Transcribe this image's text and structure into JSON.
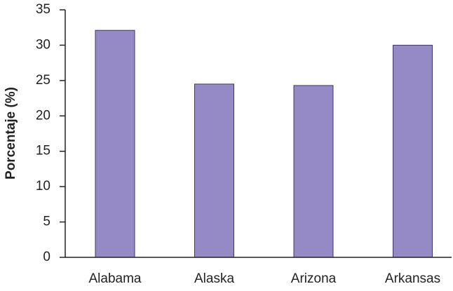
{
  "chart_data": {
    "type": "bar",
    "y_label": "Porcentaje (%)",
    "categories": [
      "Alabama",
      "Alaska",
      "Arizona",
      "Arkansas"
    ],
    "values": [
      32.1,
      24.5,
      24.3,
      30.0
    ],
    "color": "#958ac5",
    "ylim": [
      0,
      35
    ],
    "yticks": [
      0,
      5,
      10,
      15,
      20,
      25,
      30,
      35
    ],
    "grid": false
  }
}
